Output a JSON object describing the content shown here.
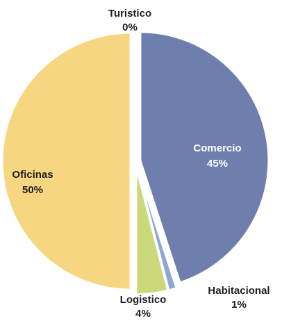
{
  "chart_data": {
    "type": "pie",
    "title": "",
    "legend": "none",
    "slices": [
      {
        "label": "Turistico",
        "value": 0,
        "value_label": "0%",
        "color": "#4f81bd",
        "label_color": "#1f1f1f"
      },
      {
        "label": "Comercio",
        "value": 45,
        "value_label": "45%",
        "color": "#6e7fae",
        "label_color": "#ffffff"
      },
      {
        "label": "Habitacional",
        "value": 1,
        "value_label": "1%",
        "color": "#8fa6d0",
        "label_color": "#1f1f1f"
      },
      {
        "label": "Logistico",
        "value": 4,
        "value_label": "4%",
        "color": "#cbd97a",
        "label_color": "#1f1f1f"
      },
      {
        "label": "Oficinas",
        "value": 50,
        "value_label": "50%",
        "color": "#f6d680",
        "label_color": "#1f1f1f"
      }
    ]
  }
}
